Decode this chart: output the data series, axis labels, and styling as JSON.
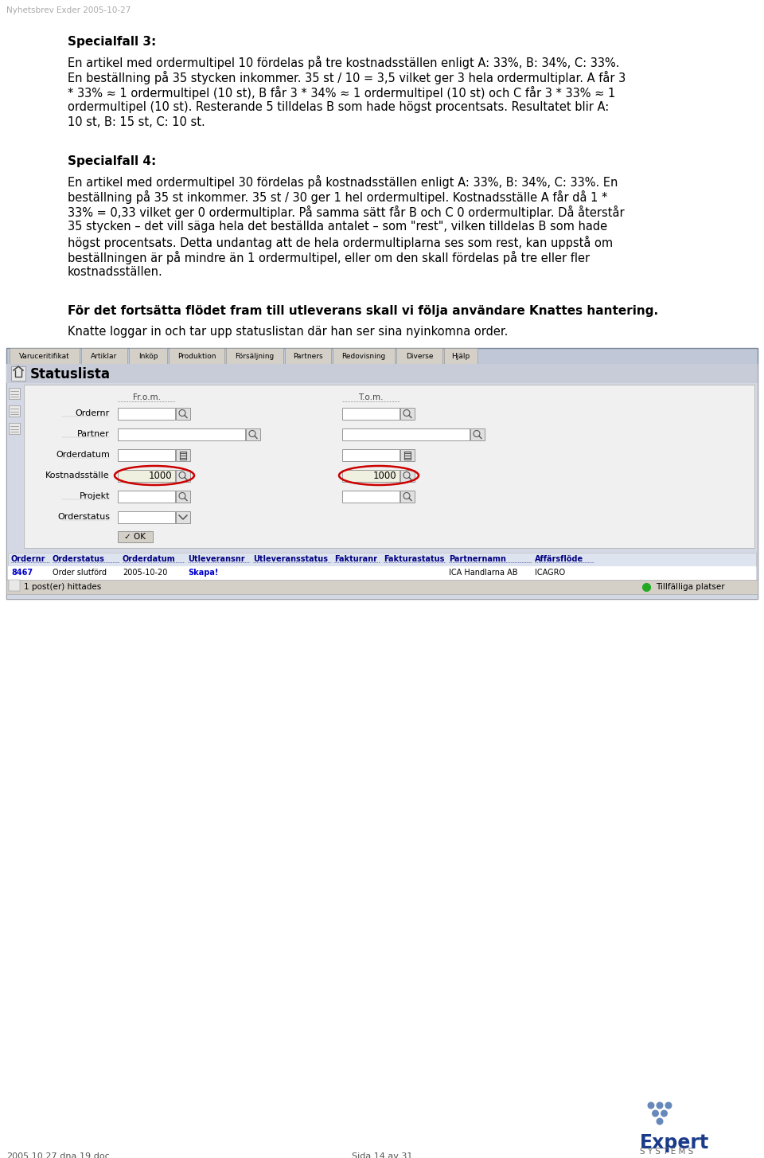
{
  "page_bg": "#ffffff",
  "header_text": "Nyhetsbrev Exder 2005-10-27",
  "header_color": "#aaaaaa",
  "header_fontsize": 7.5,
  "section3_title": "Specialfall 3:",
  "section3_body_lines": [
    "En artikel med ordermultipel 10 fördelas på tre kostnadsställen enligt A: 33%, B: 34%, C: 33%.",
    "En beställning på 35 stycken inkommer. 35 st / 10 = 3,5 vilket ger 3 hela ordermultiplar. A får 3",
    "* 33% ≈ 1 ordermultipel (10 st), B får 3 * 34% ≈ 1 ordermultipel (10 st) och C får 3 * 33% ≈ 1",
    "ordermultipel (10 st). Resterande 5 tilldelas B som hade högst procentsats. Resultatet blir A:",
    "10 st, B: 15 st, C: 10 st."
  ],
  "section4_title": "Specialfall 4:",
  "section4_body_lines": [
    "En artikel med ordermultipel 30 fördelas på kostnadsställen enligt A: 33%, B: 34%, C: 33%. En",
    "beställning på 35 st inkommer. 35 st / 30 ger 1 hel ordermultipel. Kostnadsställe A får då 1 *",
    "33% = 0,33 vilket ger 0 ordermultiplar. På samma sätt får B och C 0 ordermultiplar. Då återstår",
    "35 stycken – det vill säga hela det beställda antalet – som \"rest\", vilken tilldelas B som hade",
    "högst procentsats. Detta undantag att de hela ordermultiplarna ses som rest, kan uppstå om",
    "beställningen är på mindre än 1 ordermultipel, eller om den skall fördelas på tre eller fler",
    "kostnadsställen."
  ],
  "bold_line": "För det fortsätta flödet fram till utleverans skall vi följa användare Knattes hantering.",
  "normal_line": "Knatte loggar in och tar upp statuslistan där han ser sina nyinkomna order.",
  "footer_left": "2005.10.27.dna.19.doc",
  "footer_center": "Sida 14 av 31",
  "footer_color": "#555555",
  "footer_fontsize": 8,
  "tab_labels": [
    "Varuceritifikat",
    "Artiklar",
    "Inköp",
    "Produktion",
    "Försäljning",
    "Partners",
    "Redovisning",
    "Diverse",
    "Hjälp"
  ],
  "tab_widths": [
    88,
    58,
    48,
    70,
    72,
    58,
    78,
    58,
    42
  ],
  "form_title": "Statuslista",
  "from_label": "Fr.o.m.",
  "to_label": "T.o.m.",
  "form_field_labels": [
    "Ordernr",
    "Partner",
    "Orderdatum",
    "Kostnadsställe",
    "Projekt",
    "Orderstatus"
  ],
  "table_headers": [
    "Ordernr",
    "Orderstatus",
    "Orderdatum",
    "Utleveransnr",
    "Utleveransstatus",
    "Fakturanr",
    "Fakturastatus",
    "Partnernamn",
    "Affärsflöde"
  ],
  "table_col_widths": [
    52,
    88,
    82,
    82,
    102,
    62,
    82,
    108,
    78
  ],
  "table_row": [
    "8467",
    "Order slutförd",
    "2005-10-20",
    "Skapa!",
    "",
    "",
    "",
    "ICA Handlarna AB",
    "ICAGRO"
  ],
  "status_bar_text": "1 post(er) hittades",
  "status_bar_right": "Tillfälliga platser",
  "screen_bg": "#c0c8d8",
  "screen_border": "#7a8a9a",
  "win_bg": "#d4d8e4",
  "form_bg": "#f0f0f0",
  "expert_color": "#1a3a8a",
  "systems_color": "#666666",
  "dot_color": "#6688bb"
}
